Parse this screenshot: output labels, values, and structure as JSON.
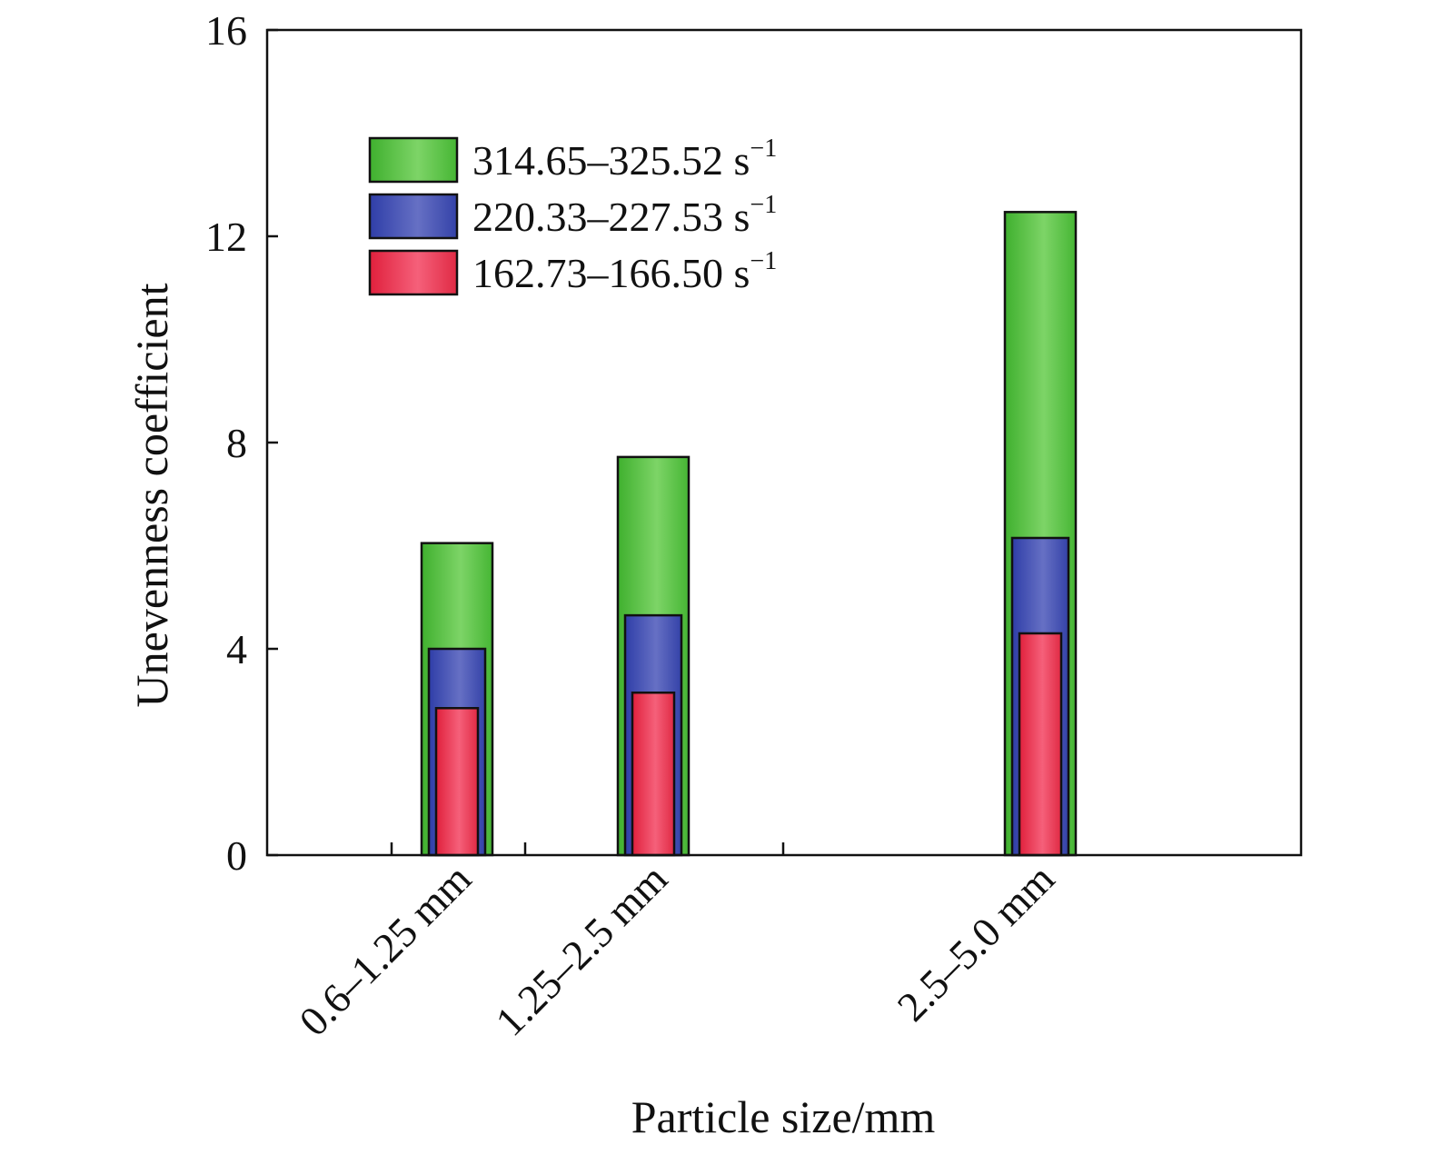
{
  "chart_data": {
    "type": "bar",
    "title": "",
    "xlabel": "Particle size/mm",
    "ylabel": "Unevenness coefficient",
    "ylim": [
      0,
      16
    ],
    "yticks": [
      "0",
      "4",
      "8",
      "12",
      "16"
    ],
    "categories": [
      "0.6–1.25 mm",
      "1.25–2.5 mm",
      "2.5–5.0 mm"
    ],
    "series": [
      {
        "name": "314.65–325.52 s",
        "unit_superscript": "−1",
        "color": "#5ec94a",
        "values": [
          6.05,
          7.72,
          12.47
        ]
      },
      {
        "name": "220.33–227.53 s",
        "unit_superscript": "−1",
        "color": "#4a56b4",
        "values": [
          4.0,
          4.65,
          6.15
        ]
      },
      {
        "name": "162.73–166.50 s",
        "unit_superscript": "−1",
        "color": "#e8344e",
        "values": [
          2.85,
          3.15,
          4.3
        ]
      }
    ],
    "legend": "upper-left",
    "grid": false,
    "layout": "overlapping nested bars"
  }
}
